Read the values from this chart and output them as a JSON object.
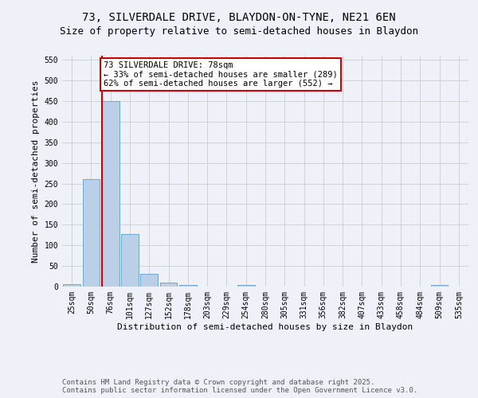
{
  "title_line1": "73, SILVERDALE DRIVE, BLAYDON-ON-TYNE, NE21 6EN",
  "title_line2": "Size of property relative to semi-detached houses in Blaydon",
  "categories": [
    "25sqm",
    "50sqm",
    "76sqm",
    "101sqm",
    "127sqm",
    "152sqm",
    "178sqm",
    "203sqm",
    "229sqm",
    "254sqm",
    "280sqm",
    "305sqm",
    "331sqm",
    "356sqm",
    "382sqm",
    "407sqm",
    "433sqm",
    "458sqm",
    "484sqm",
    "509sqm",
    "535sqm"
  ],
  "values": [
    5,
    260,
    450,
    128,
    30,
    10,
    3,
    0,
    0,
    4,
    0,
    0,
    0,
    0,
    0,
    0,
    0,
    0,
    0,
    4,
    0
  ],
  "bar_color": "#bad0e8",
  "bar_edge_color": "#6aaad4",
  "property_line_index": 2,
  "property_line_color": "#cc0000",
  "annotation_text": "73 SILVERDALE DRIVE: 78sqm\n← 33% of semi-detached houses are smaller (289)\n62% of semi-detached houses are larger (552) →",
  "annotation_box_color": "#ffffff",
  "annotation_box_edge": "#cc0000",
  "xlabel": "Distribution of semi-detached houses by size in Blaydon",
  "ylabel": "Number of semi-detached properties",
  "ylim": [
    0,
    560
  ],
  "yticks": [
    0,
    50,
    100,
    150,
    200,
    250,
    300,
    350,
    400,
    450,
    500,
    550
  ],
  "grid_color": "#cccccc",
  "background_color": "#eef2f8",
  "footer_line1": "Contains HM Land Registry data © Crown copyright and database right 2025.",
  "footer_line2": "Contains public sector information licensed under the Open Government Licence v3.0.",
  "title_fontsize": 10,
  "subtitle_fontsize": 9,
  "axis_label_fontsize": 8,
  "tick_fontsize": 7,
  "annotation_fontsize": 7.5,
  "footer_fontsize": 6.5
}
